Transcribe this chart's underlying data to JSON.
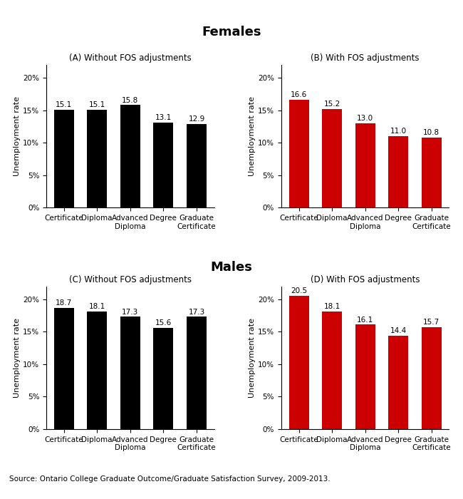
{
  "title_females": "Females",
  "title_males": "Males",
  "subtitle_A": "(A) Without FOS adjustments",
  "subtitle_B": "(B) With FOS adjustments",
  "subtitle_C": "(C) Without FOS adjustments",
  "subtitle_D": "(D) With FOS adjustments",
  "categories": [
    "Certificate",
    "Diploma",
    "Advanced\nDiploma",
    "Degree",
    "Graduate\nCertificate"
  ],
  "values_A": [
    15.1,
    15.1,
    15.8,
    13.1,
    12.9
  ],
  "values_B": [
    16.6,
    15.2,
    13.0,
    11.0,
    10.8
  ],
  "values_C": [
    18.7,
    18.1,
    17.3,
    15.6,
    17.3
  ],
  "values_D": [
    20.5,
    18.1,
    16.1,
    14.4,
    15.7
  ],
  "color_black": "#000000",
  "color_red": "#cc0000",
  "ylabel": "Unemployment rate",
  "yticks": [
    0,
    5,
    10,
    15,
    20
  ],
  "yticklabels": [
    "0%",
    "5%",
    "10%",
    "15%",
    "20%"
  ],
  "ylim": [
    0,
    22
  ],
  "source": "Source: Ontario College Graduate Outcome/Graduate Satisfaction Survey, 2009-2013.",
  "title_fontsize": 13,
  "subtitle_fontsize": 8.5,
  "label_fontsize": 7.5,
  "ylabel_fontsize": 8,
  "source_fontsize": 7.5,
  "bar_label_fontsize": 7.5
}
